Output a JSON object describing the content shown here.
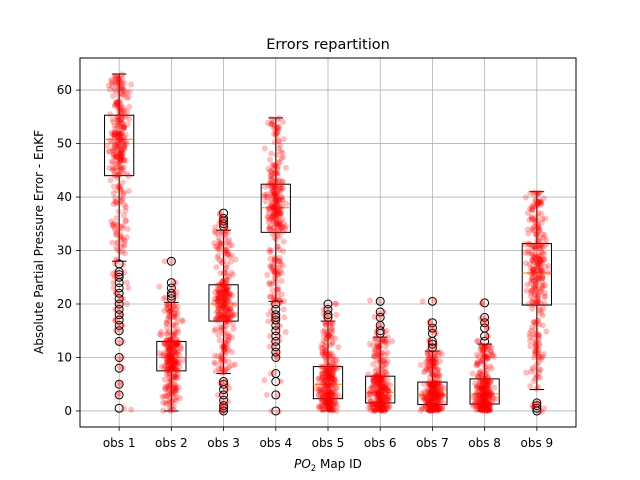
{
  "chart_data": {
    "type": "box",
    "title": "Errors repartition",
    "xlabel_prefix": "PO",
    "xlabel_sub": "2",
    "xlabel_suffix": " Map ID",
    "ylabel": "Absolute Partial Pressure Error - EnKF",
    "ylim": [
      -3,
      66
    ],
    "yticks": [
      "0",
      "10",
      "20",
      "30",
      "40",
      "50",
      "60"
    ],
    "grid": true,
    "categories": [
      "obs 1",
      "obs 2",
      "obs 3",
      "obs 4",
      "obs 5",
      "obs 6",
      "obs 7",
      "obs 8",
      "obs 9"
    ],
    "boxes": [
      {
        "whisker_low": 28,
        "q1": 44,
        "median": 50.8,
        "q3": 55.3,
        "whisker_high": 63,
        "outliers": [
          0.5,
          3,
          5,
          8,
          10,
          13,
          15,
          16,
          17,
          18,
          19,
          20,
          21,
          22,
          23,
          24,
          25,
          25.5,
          26,
          27.5
        ]
      },
      {
        "whisker_low": 0,
        "q1": 7.5,
        "median": 10,
        "q3": 13,
        "whisker_high": 20.3,
        "outliers": [
          21,
          21.5,
          22,
          23,
          24,
          28
        ]
      },
      {
        "whisker_low": 7,
        "q1": 16.8,
        "median": 20,
        "q3": 23.6,
        "whisker_high": 33.8,
        "outliers": [
          0,
          0.5,
          1,
          2,
          3,
          4,
          5,
          5.5,
          34.5,
          35,
          35.5,
          36,
          37
        ]
      },
      {
        "whisker_low": 20.5,
        "q1": 33.4,
        "median": 38,
        "q3": 42.4,
        "whisker_high": 54.8,
        "outliers": [
          0,
          3,
          5.5,
          7,
          10,
          11,
          12,
          13,
          14,
          15,
          16,
          17,
          17.5,
          18,
          19,
          20
        ]
      },
      {
        "whisker_low": 0,
        "q1": 2.3,
        "median": 5,
        "q3": 8.3,
        "whisker_high": 16.8,
        "outliers": [
          17.5,
          18,
          19,
          20
        ]
      },
      {
        "whisker_low": 0,
        "q1": 1.5,
        "median": 3.5,
        "q3": 6.5,
        "whisker_high": 13.8,
        "outliers": [
          14.5,
          15,
          16,
          17.5,
          18.5,
          20.5
        ]
      },
      {
        "whisker_low": 0,
        "q1": 1.2,
        "median": 3,
        "q3": 5.4,
        "whisker_high": 11.2,
        "outliers": [
          11.8,
          12.5,
          13,
          14.5,
          15.5,
          16.5,
          20.5
        ]
      },
      {
        "whisker_low": 0,
        "q1": 1.3,
        "median": 3.2,
        "q3": 6,
        "whisker_high": 12.5,
        "outliers": [
          13,
          14,
          15.5,
          16.5,
          17.5,
          20.2
        ]
      },
      {
        "whisker_low": 4,
        "q1": 19.8,
        "median": 25.8,
        "q3": 31.3,
        "whisker_high": 41,
        "outliers": [
          0,
          0.5,
          1,
          1.5
        ]
      }
    ],
    "colors": {
      "box": "#000000",
      "median": "#ff7f0e",
      "points": "#ff0000",
      "grid": "#b0b0b0"
    }
  }
}
